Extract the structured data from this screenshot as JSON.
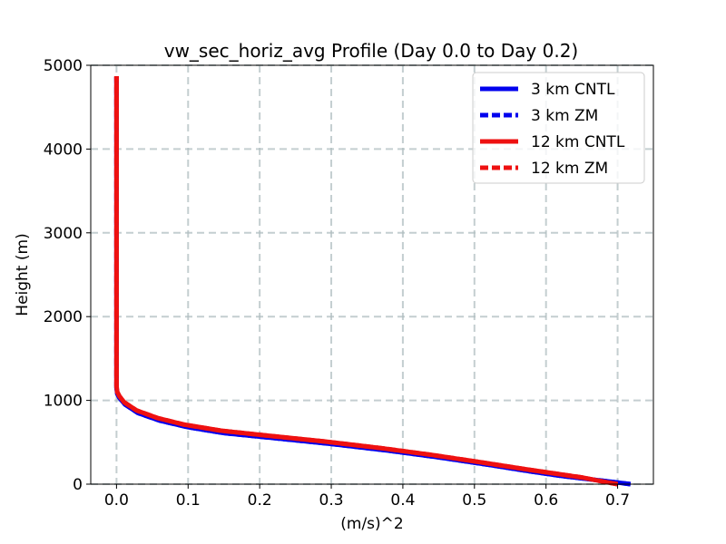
{
  "chart_data": {
    "type": "line",
    "title": "vw_sec_horiz_avg Profile (Day 0.0 to Day 0.2)",
    "xlabel": "(m/s)^2",
    "ylabel": "Height (m)",
    "xlim": [
      -0.036,
      0.75
    ],
    "ylim": [
      0,
      5000
    ],
    "xticks": [
      0.0,
      0.1,
      0.2,
      0.3,
      0.4,
      0.5,
      0.6,
      0.7
    ],
    "xtick_labels": [
      "0.0",
      "0.1",
      "0.2",
      "0.3",
      "0.4",
      "0.5",
      "0.6",
      "0.7"
    ],
    "yticks": [
      0,
      1000,
      2000,
      3000,
      4000,
      5000
    ],
    "ytick_labels": [
      "0",
      "1000",
      "2000",
      "3000",
      "4000",
      "5000"
    ],
    "grid": true,
    "legend_position": "top-right",
    "series": [
      {
        "name": "3 km CNTL",
        "color": "#0000ee",
        "dash": "solid",
        "x": [
          0.718,
          0.7,
          0.66,
          0.62,
          0.58,
          0.52,
          0.45,
          0.38,
          0.3,
          0.22,
          0.15,
          0.1,
          0.06,
          0.03,
          0.012,
          0.004,
          0.001,
          0.0,
          0.0
        ],
        "y": [
          0,
          20,
          60,
          100,
          150,
          230,
          320,
          400,
          480,
          550,
          610,
          680,
          760,
          850,
          950,
          1030,
          1080,
          1150,
          4860
        ]
      },
      {
        "name": "3 km ZM",
        "color": "#0000ee",
        "dash": "dashed",
        "x": [
          0.718,
          0.7,
          0.66,
          0.62,
          0.58,
          0.52,
          0.45,
          0.38,
          0.3,
          0.22,
          0.15,
          0.1,
          0.06,
          0.03,
          0.012,
          0.004,
          0.001,
          0.0,
          0.0
        ],
        "y": [
          0,
          20,
          60,
          100,
          150,
          230,
          320,
          400,
          480,
          550,
          610,
          680,
          760,
          850,
          950,
          1030,
          1080,
          1150,
          4860
        ]
      },
      {
        "name": "12 km CNTL",
        "color": "#ee1111",
        "dash": "solid",
        "x": [
          0.7,
          0.68,
          0.65,
          0.61,
          0.57,
          0.51,
          0.44,
          0.37,
          0.29,
          0.21,
          0.145,
          0.095,
          0.057,
          0.028,
          0.011,
          0.004,
          0.001,
          0.0,
          0.0
        ],
        "y": [
          0,
          30,
          80,
          130,
          180,
          260,
          350,
          430,
          510,
          580,
          640,
          710,
          790,
          880,
          975,
          1050,
          1100,
          1170,
          4870
        ]
      },
      {
        "name": "12 km ZM",
        "color": "#ee1111",
        "dash": "dashed",
        "x": [
          0.7,
          0.68,
          0.65,
          0.61,
          0.57,
          0.51,
          0.44,
          0.37,
          0.29,
          0.21,
          0.145,
          0.095,
          0.057,
          0.028,
          0.011,
          0.004,
          0.001,
          0.0,
          0.0
        ],
        "y": [
          0,
          30,
          80,
          130,
          180,
          260,
          350,
          430,
          510,
          580,
          640,
          710,
          790,
          880,
          975,
          1050,
          1100,
          1170,
          4870
        ]
      }
    ]
  }
}
